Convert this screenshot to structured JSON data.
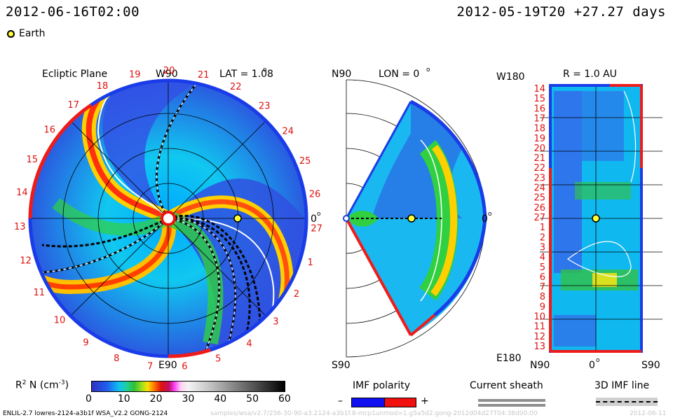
{
  "header": {
    "timestamp": "2012-06-16T02:00",
    "reference": "2012-05-19T20 +27.27 days"
  },
  "legend": {
    "earth_label": "Earth"
  },
  "ecliptic": {
    "title": "Ecliptic Plane",
    "top_axis": "W90",
    "lat_label": "LAT = 1.08",
    "lat_deg": "o",
    "bottom_axis": "E90",
    "right_axis": "0",
    "right_deg": "o",
    "rim_numbers": [
      "19",
      "20",
      "21",
      "22",
      "23",
      "24",
      "25",
      "26",
      "27",
      "1",
      "2",
      "3",
      "4",
      "5",
      "6",
      "7",
      "8",
      "9",
      "10",
      "11",
      "12",
      "13",
      "14",
      "15",
      "16",
      "17",
      "18"
    ]
  },
  "meridional": {
    "top_axis": "N90",
    "lon_label": "LON = 0",
    "lon_deg": "o",
    "bottom_axis": "S90",
    "right_axis": "0",
    "right_deg": "o"
  },
  "radial": {
    "top_axis": "W180",
    "title": "R = 1.0 AU",
    "bottom_left": "E180",
    "bottom_axis": [
      "N90",
      "0",
      "S90"
    ],
    "bottom_deg": "o",
    "row_numbers": [
      "14",
      "15",
      "16",
      "17",
      "18",
      "19",
      "20",
      "21",
      "22",
      "23",
      "24",
      "25",
      "26",
      "27",
      "1",
      "2",
      "3",
      "4",
      "5",
      "6",
      "7",
      "8",
      "9",
      "10",
      "11",
      "12",
      "13"
    ]
  },
  "colorbar": {
    "label": "R",
    "label_sup": "2",
    "label_rest": " N (cm",
    "label_sup2": "-3",
    "label_end": ")",
    "ticks": [
      "0",
      "10",
      "20",
      "30",
      "40",
      "50",
      "60"
    ]
  },
  "imf_polarity": {
    "title": "IMF polarity",
    "minus": "–",
    "plus": "+",
    "neg_color": "#1010f0",
    "pos_color": "#f01010"
  },
  "current_sheath": {
    "title": "Current sheath"
  },
  "imf_line": {
    "title": "3D IMF line"
  },
  "footer": {
    "model": "ENLIL-2.7 lowres-2124-a3b1f WSA_V2.2 GONG-2124",
    "path": "samples/wsa/v2.7/256-30-90-a3.2124-a3b1f.8-mcp1unmod=1.g5a5d2.gong-2012d04d27T04:38d00:00",
    "date": "2012-06-11"
  }
}
